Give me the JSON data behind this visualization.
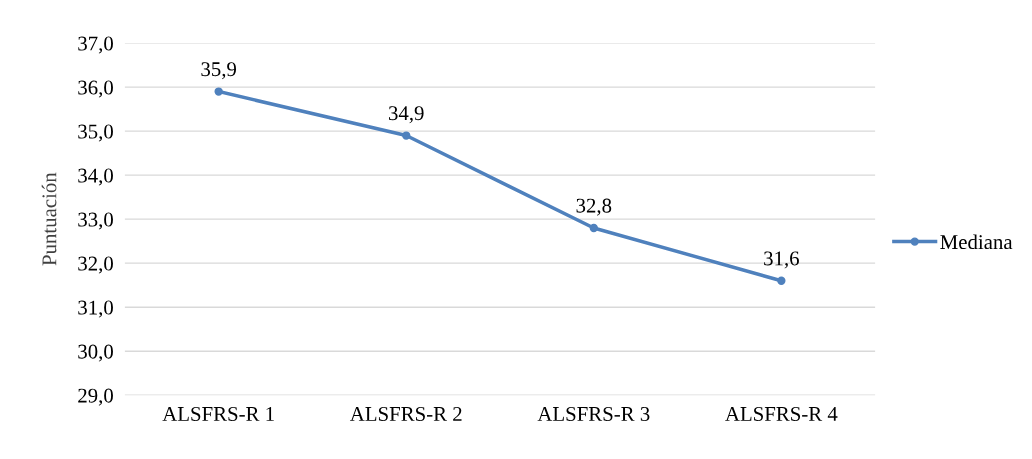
{
  "chart_data": {
    "type": "line",
    "ylabel": "Puntuación",
    "categories": [
      "ALSFRS-R 1",
      "ALSFRS-R 2",
      "ALSFRS-R 3",
      "ALSFRS-R 4"
    ],
    "series": [
      {
        "name": "Mediana",
        "color": "#4f81bd",
        "values": [
          35.9,
          34.9,
          32.8,
          31.6
        ],
        "value_labels": [
          "35,9",
          "34,9",
          "32,8",
          "31,6"
        ]
      }
    ],
    "ylim": [
      29,
      37
    ],
    "yticks": [
      {
        "value": 29,
        "label": "29,0"
      },
      {
        "value": 30,
        "label": "30,0"
      },
      {
        "value": 31,
        "label": "31,0"
      },
      {
        "value": 32,
        "label": "32,0"
      },
      {
        "value": 33,
        "label": "33,0"
      },
      {
        "value": 34,
        "label": "34,0"
      },
      {
        "value": 35,
        "label": "35,0"
      },
      {
        "value": 36,
        "label": "36,0"
      },
      {
        "value": 37,
        "label": "37,0"
      }
    ],
    "grid": "y",
    "legend": "right",
    "marker": "circle",
    "line_style": "solid"
  }
}
